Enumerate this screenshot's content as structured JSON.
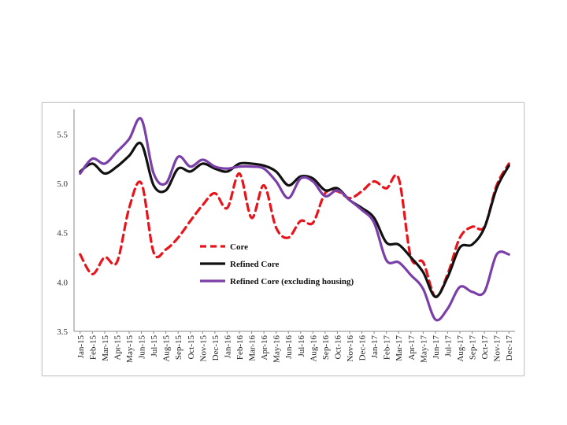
{
  "chart_data": {
    "type": "line",
    "title": "",
    "xlabel": "",
    "ylabel": "",
    "ylim": [
      3.5,
      5.75
    ],
    "yticks": [
      "3.5",
      "4.0",
      "4.5",
      "5.0",
      "5.5"
    ],
    "categories": [
      "Jan-15",
      "Feb-15",
      "Mar-15",
      "Apr-15",
      "May-15",
      "Jun-15",
      "Jul-15",
      "Aug-15",
      "Sep-15",
      "Oct-15",
      "Nov-15",
      "Dec-15",
      "Jan-16",
      "Feb-16",
      "Mar-16",
      "Apr-16",
      "May-16",
      "Jun-16",
      "Jul-16",
      "Aug-16",
      "Sep-16",
      "Oct-16",
      "Nov-16",
      "Dec-16",
      "Jan-17",
      "Feb-17",
      "Mar-17",
      "Apr-17",
      "May-17",
      "Jun-17",
      "Jul-17",
      "Aug-17",
      "Sep-17",
      "Oct-17",
      "Nov-17",
      "Dec-17"
    ],
    "legend_position": "lower-center",
    "grid": false,
    "series": [
      {
        "name": "Core",
        "color": "#e8141b",
        "dash": "dashed",
        "values": [
          4.28,
          4.08,
          4.25,
          4.2,
          4.75,
          5.0,
          4.3,
          4.33,
          4.45,
          4.62,
          4.78,
          4.9,
          4.75,
          5.1,
          4.65,
          4.98,
          4.55,
          4.45,
          4.62,
          4.6,
          4.9,
          4.92,
          4.85,
          4.92,
          5.02,
          4.95,
          5.05,
          4.25,
          4.2,
          3.85,
          4.08,
          4.45,
          4.56,
          4.56,
          4.98,
          5.2
        ]
      },
      {
        "name": "Refined Core",
        "color": "#111111",
        "dash": "solid",
        "values": [
          5.12,
          5.2,
          5.1,
          5.17,
          5.28,
          5.4,
          4.98,
          4.93,
          5.15,
          5.12,
          5.2,
          5.15,
          5.12,
          5.2,
          5.2,
          5.18,
          5.12,
          4.98,
          5.07,
          5.05,
          4.93,
          4.95,
          4.83,
          4.75,
          4.65,
          4.4,
          4.38,
          4.25,
          4.1,
          3.85,
          4.05,
          4.35,
          4.38,
          4.55,
          4.95,
          5.18
        ]
      },
      {
        "name": "Refined Core (excluding housing)",
        "color": "#7b3fa8",
        "dash": "solid",
        "values": [
          5.1,
          5.25,
          5.2,
          5.32,
          5.45,
          5.65,
          5.1,
          5.0,
          5.27,
          5.17,
          5.24,
          5.17,
          5.15,
          5.17,
          5.17,
          5.15,
          5.02,
          4.85,
          5.05,
          5.02,
          4.87,
          4.93,
          4.83,
          4.73,
          4.6,
          4.22,
          4.2,
          4.07,
          3.93,
          3.62,
          3.73,
          3.95,
          3.9,
          3.9,
          4.28,
          4.28
        ]
      }
    ]
  }
}
